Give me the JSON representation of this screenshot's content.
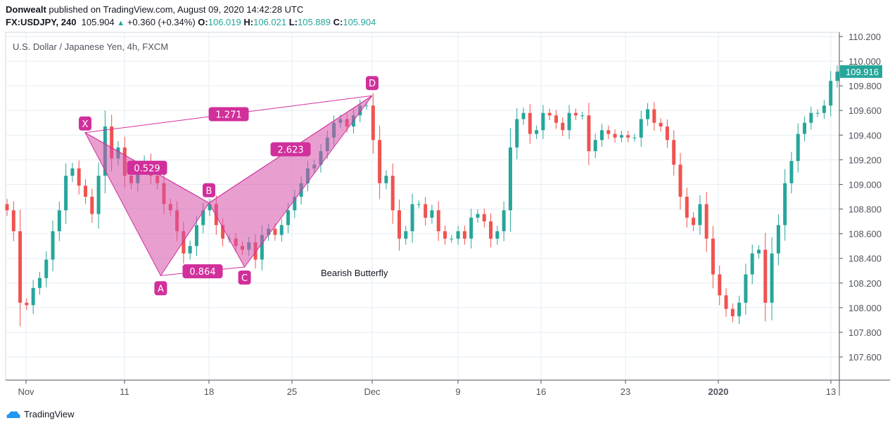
{
  "header": {
    "author": "Donwealt",
    "published": "published on TradingView.com, August 09, 2020 14:42:28 UTC",
    "symbol": "FX:USDJPY, 240",
    "last": "105.904",
    "change": "+0.360 (+0.34%)",
    "o_label": "O:",
    "o": "106.019",
    "h_label": "H:",
    "h": "106.021",
    "l_label": "L:",
    "l": "105.889",
    "c_label": "C:",
    "c": "105.904"
  },
  "footer": {
    "brand": "TradingView"
  },
  "chart_data": {
    "type": "candlestick",
    "title": "U.S. Dollar / Japanese Yen, 4h, FXCM",
    "ylim": [
      107.5,
      110.3
    ],
    "yticks": [
      107.6,
      107.8,
      108.0,
      108.2,
      108.4,
      108.6,
      108.8,
      109.0,
      109.2,
      109.4,
      109.6,
      109.8,
      110.0,
      110.2
    ],
    "grid": true,
    "last_price": "109.916",
    "xticks": [
      {
        "label": "Nov",
        "date": "2019-11-01"
      },
      {
        "label": "11",
        "date": "2019-11-11"
      },
      {
        "label": "18",
        "date": "2019-11-18"
      },
      {
        "label": "25",
        "date": "2019-11-25"
      },
      {
        "label": "Dec",
        "date": "2019-12-02"
      },
      {
        "label": "9",
        "date": "2019-12-09"
      },
      {
        "label": "16",
        "date": "2019-12-16"
      },
      {
        "label": "23",
        "date": "2019-12-23"
      },
      {
        "label": "2020",
        "date": "2020-01-02"
      },
      {
        "label": "13",
        "date": "2020-01-13"
      }
    ],
    "closes": [
      108.79,
      108.62,
      108.04,
      108.02,
      108.16,
      108.24,
      108.39,
      108.62,
      108.79,
      109.07,
      109.13,
      108.99,
      108.9,
      108.76,
      109.07,
      109.47,
      109.21,
      109.3,
      109.07,
      109.01,
      109.13,
      109.19,
      109.07,
      109.01,
      108.84,
      108.79,
      108.62,
      108.44,
      108.5,
      108.67,
      108.79,
      108.84,
      108.67,
      108.56,
      108.56,
      108.5,
      108.47,
      108.53,
      108.39,
      108.59,
      108.64,
      108.59,
      108.67,
      108.79,
      108.9,
      109.01,
      109.13,
      109.16,
      109.27,
      109.38,
      109.5,
      109.53,
      109.47,
      109.56,
      109.64,
      109.64,
      109.36,
      109.01,
      109.07,
      108.79,
      108.56,
      108.62,
      108.84,
      108.84,
      108.73,
      108.79,
      108.62,
      108.56,
      108.56,
      108.62,
      108.56,
      108.73,
      108.76,
      108.7,
      108.56,
      108.62,
      108.79,
      109.3,
      109.53,
      109.58,
      109.41,
      109.44,
      109.58,
      109.56,
      109.5,
      109.44,
      109.58,
      109.56,
      109.56,
      109.27,
      109.36,
      109.44,
      109.41,
      109.38,
      109.4,
      109.38,
      109.38,
      109.53,
      109.61,
      109.5,
      109.47,
      109.36,
      109.16,
      108.9,
      108.73,
      108.67,
      108.84,
      108.56,
      108.27,
      108.1,
      107.99,
      107.93,
      108.04,
      108.27,
      108.44,
      108.47,
      108.04,
      108.44,
      108.67,
      109.01,
      109.19,
      109.41,
      109.5,
      109.58,
      109.58,
      109.64,
      109.84,
      109.916
    ],
    "up_color": "#26a69a",
    "down_color": "#ef5350",
    "pattern": {
      "name": "Bearish Butterfly",
      "color": "#d12f9b",
      "points": [
        {
          "label": "X",
          "date": "2019-11-07",
          "price": 109.42
        },
        {
          "label": "A",
          "date": "2019-11-14",
          "price": 108.26
        },
        {
          "label": "B",
          "date": "2019-11-18",
          "price": 108.85
        },
        {
          "label": "C",
          "date": "2019-11-21",
          "price": 108.33
        },
        {
          "label": "D",
          "date": "2019-12-02",
          "price": 109.72
        }
      ],
      "ratios": {
        "XB": "0.529",
        "AC": "0.864",
        "BD": "2.623",
        "XD": "1.271"
      }
    }
  }
}
